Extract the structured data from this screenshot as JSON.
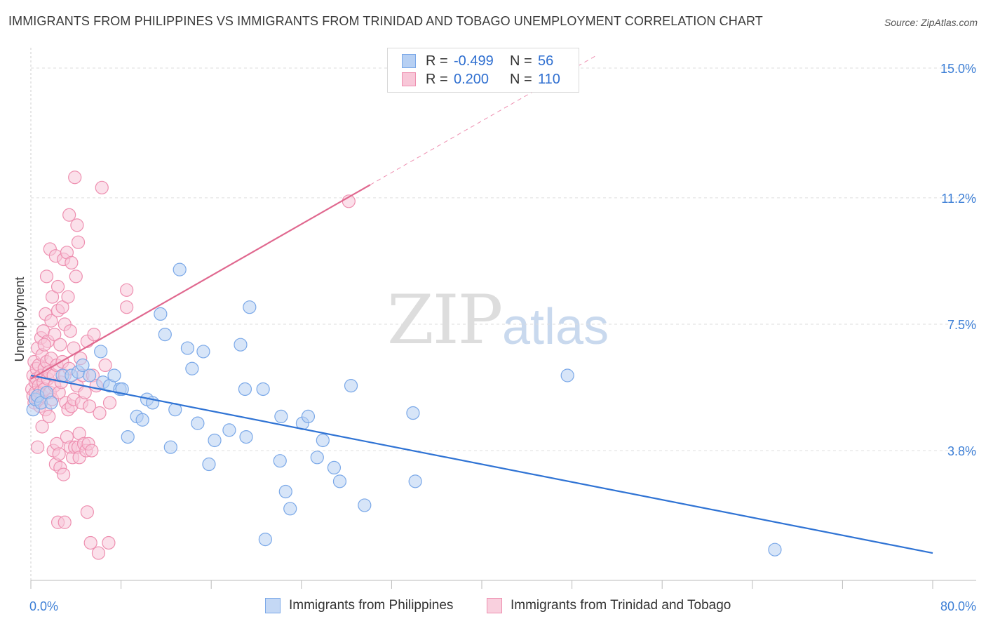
{
  "title": "IMMIGRANTS FROM PHILIPPINES VS IMMIGRANTS FROM TRINIDAD AND TOBAGO UNEMPLOYMENT CORRELATION CHART",
  "source": "Source: ZipAtlas.com",
  "watermark": {
    "zip": "ZIP",
    "atlas": "atlas"
  },
  "legend": {
    "rows": [
      {
        "r_label": "R =",
        "r_value": "-0.499",
        "n_label": "N =",
        "n_value": "56",
        "color": "#7aa8e8",
        "fill": "#b7d0f3"
      },
      {
        "r_label": "R =",
        "r_value": "0.200",
        "n_label": "N =",
        "n_value": "110",
        "color": "#ee8fb0",
        "fill": "#f8c7d8"
      }
    ]
  },
  "colors": {
    "blue": "#7aa8e8",
    "blue_fill": "#b7d0f3",
    "blue_line": "#2f73d4",
    "pink": "#ee8fb0",
    "pink_fill": "#f8c7d8",
    "pink_line": "#e0688f",
    "axis_text": "#3d7fd6",
    "grid": "#dddddd"
  },
  "chart_data": {
    "type": "scatter",
    "title": "IMMIGRANTS FROM PHILIPPINES VS IMMIGRANTS FROM TRINIDAD AND TOBAGO UNEMPLOYMENT CORRELATION CHART",
    "xlabel": "",
    "ylabel": "Unemployment",
    "xlim": [
      0,
      80
    ],
    "ylim": [
      0,
      15.5
    ],
    "x_tick_labels": [
      "0.0%",
      "80.0%"
    ],
    "y_ticks": [
      3.8,
      7.5,
      11.2,
      15.0
    ],
    "y_tick_labels": [
      "3.8%",
      "7.5%",
      "11.2%",
      "15.0%"
    ],
    "grid": true,
    "legend_position": "top-center",
    "series": [
      {
        "name": "Immigrants from Philippines",
        "r": -0.499,
        "n": 56,
        "trend": {
          "x": [
            0,
            80
          ],
          "y": [
            6.0,
            0.8
          ],
          "solid_until": 80
        },
        "points": [
          [
            0.2,
            5.0
          ],
          [
            0.4,
            5.3
          ],
          [
            0.6,
            5.4
          ],
          [
            0.9,
            5.2
          ],
          [
            1.4,
            5.5
          ],
          [
            1.8,
            5.2
          ],
          [
            2.8,
            6.0
          ],
          [
            3.6,
            6.0
          ],
          [
            4.2,
            6.1
          ],
          [
            5.2,
            6.0
          ],
          [
            6.4,
            5.8
          ],
          [
            7.0,
            5.7
          ],
          [
            7.4,
            6.0
          ],
          [
            7.9,
            5.6
          ],
          [
            8.1,
            5.6
          ],
          [
            8.6,
            4.2
          ],
          [
            9.4,
            4.8
          ],
          [
            9.9,
            4.7
          ],
          [
            10.3,
            5.3
          ],
          [
            10.8,
            5.2
          ],
          [
            11.5,
            7.8
          ],
          [
            11.9,
            7.2
          ],
          [
            12.4,
            3.9
          ],
          [
            12.8,
            5.0
          ],
          [
            13.2,
            9.1
          ],
          [
            13.9,
            6.8
          ],
          [
            14.3,
            6.2
          ],
          [
            14.8,
            4.6
          ],
          [
            15.3,
            6.7
          ],
          [
            15.8,
            3.4
          ],
          [
            16.3,
            4.1
          ],
          [
            17.6,
            4.4
          ],
          [
            18.6,
            6.9
          ],
          [
            19.1,
            4.2
          ],
          [
            19.4,
            8.0
          ],
          [
            19.0,
            5.6
          ],
          [
            20.6,
            5.6
          ],
          [
            20.8,
            1.2
          ],
          [
            22.1,
            3.5
          ],
          [
            22.6,
            2.6
          ],
          [
            22.2,
            4.8
          ],
          [
            23.0,
            2.1
          ],
          [
            24.1,
            4.6
          ],
          [
            24.6,
            4.8
          ],
          [
            25.4,
            3.6
          ],
          [
            25.9,
            4.1
          ],
          [
            26.9,
            3.3
          ],
          [
            27.4,
            2.9
          ],
          [
            28.4,
            5.7
          ],
          [
            29.6,
            2.2
          ],
          [
            33.9,
            4.9
          ],
          [
            34.1,
            2.9
          ],
          [
            47.6,
            6.0
          ],
          [
            66.0,
            0.9
          ],
          [
            6.2,
            6.7
          ],
          [
            4.6,
            6.3
          ]
        ]
      },
      {
        "name": "Immigrants from Trinidad and Tobago",
        "r": 0.2,
        "n": 110,
        "trend": {
          "x": [
            0,
            80
          ],
          "y": [
            5.9,
            21.0
          ],
          "solid_until": 30.1
        },
        "points": [
          [
            0.1,
            5.6
          ],
          [
            0.2,
            6.0
          ],
          [
            0.2,
            5.4
          ],
          [
            0.3,
            5.2
          ],
          [
            0.3,
            6.4
          ],
          [
            0.4,
            5.8
          ],
          [
            0.4,
            5.5
          ],
          [
            0.5,
            6.2
          ],
          [
            0.5,
            5.9
          ],
          [
            0.6,
            5.3
          ],
          [
            0.6,
            6.8
          ],
          [
            0.7,
            5.7
          ],
          [
            0.7,
            6.3
          ],
          [
            0.8,
            5.5
          ],
          [
            0.8,
            5.1
          ],
          [
            0.9,
            7.1
          ],
          [
            0.9,
            6.0
          ],
          [
            1.0,
            5.4
          ],
          [
            1.0,
            6.6
          ],
          [
            1.1,
            5.8
          ],
          [
            1.1,
            7.3
          ],
          [
            1.2,
            6.2
          ],
          [
            1.2,
            5.6
          ],
          [
            1.3,
            7.8
          ],
          [
            1.3,
            5.0
          ],
          [
            1.4,
            6.4
          ],
          [
            1.4,
            8.9
          ],
          [
            1.5,
            5.9
          ],
          [
            1.5,
            7.0
          ],
          [
            1.6,
            6.1
          ],
          [
            1.6,
            4.8
          ],
          [
            1.7,
            5.5
          ],
          [
            1.7,
            9.7
          ],
          [
            1.8,
            6.5
          ],
          [
            1.8,
            7.6
          ],
          [
            1.9,
            5.3
          ],
          [
            1.9,
            8.3
          ],
          [
            2.0,
            6.0
          ],
          [
            2.0,
            3.8
          ],
          [
            2.1,
            7.2
          ],
          [
            2.1,
            5.7
          ],
          [
            2.2,
            9.5
          ],
          [
            2.2,
            3.4
          ],
          [
            2.3,
            6.3
          ],
          [
            2.3,
            4.0
          ],
          [
            2.4,
            7.9
          ],
          [
            2.4,
            8.6
          ],
          [
            2.5,
            5.5
          ],
          [
            2.5,
            3.7
          ],
          [
            2.6,
            6.9
          ],
          [
            2.6,
            3.3
          ],
          [
            2.7,
            5.8
          ],
          [
            2.8,
            8.0
          ],
          [
            2.8,
            6.4
          ],
          [
            2.9,
            9.4
          ],
          [
            2.9,
            3.1
          ],
          [
            3.0,
            6.0
          ],
          [
            3.0,
            7.5
          ],
          [
            3.1,
            5.2
          ],
          [
            3.2,
            9.6
          ],
          [
            3.2,
            4.2
          ],
          [
            3.3,
            8.3
          ],
          [
            3.3,
            5.0
          ],
          [
            3.4,
            10.7
          ],
          [
            3.4,
            6.2
          ],
          [
            3.5,
            7.3
          ],
          [
            3.5,
            3.9
          ],
          [
            3.6,
            5.1
          ],
          [
            3.6,
            9.3
          ],
          [
            3.7,
            3.6
          ],
          [
            3.8,
            6.8
          ],
          [
            3.8,
            5.3
          ],
          [
            3.9,
            11.8
          ],
          [
            3.9,
            3.9
          ],
          [
            4.0,
            8.9
          ],
          [
            4.1,
            5.7
          ],
          [
            4.1,
            10.4
          ],
          [
            4.2,
            9.9
          ],
          [
            4.2,
            3.9
          ],
          [
            4.3,
            4.3
          ],
          [
            4.3,
            3.6
          ],
          [
            4.4,
            6.5
          ],
          [
            4.5,
            5.2
          ],
          [
            4.6,
            6.0
          ],
          [
            4.7,
            4.0
          ],
          [
            4.8,
            5.5
          ],
          [
            4.9,
            3.8
          ],
          [
            5.0,
            7.0
          ],
          [
            5.0,
            2.0
          ],
          [
            5.1,
            4.0
          ],
          [
            5.2,
            5.1
          ],
          [
            5.3,
            1.1
          ],
          [
            5.4,
            3.8
          ],
          [
            5.5,
            6.0
          ],
          [
            5.6,
            7.2
          ],
          [
            5.8,
            5.7
          ],
          [
            6.0,
            0.8
          ],
          [
            6.1,
            4.9
          ],
          [
            6.3,
            11.5
          ],
          [
            6.6,
            6.3
          ],
          [
            6.9,
            1.1
          ],
          [
            7.0,
            5.2
          ],
          [
            8.5,
            8.5
          ],
          [
            8.5,
            8.0
          ],
          [
            0.6,
            3.9
          ],
          [
            1.0,
            4.5
          ],
          [
            2.4,
            1.7
          ],
          [
            1.2,
            6.9
          ],
          [
            28.2,
            11.1
          ],
          [
            3.0,
            1.7
          ]
        ]
      }
    ]
  },
  "bottom_legend": [
    {
      "label": "Immigrants from Philippines"
    },
    {
      "label": "Immigrants from Trinidad and Tobago"
    }
  ]
}
